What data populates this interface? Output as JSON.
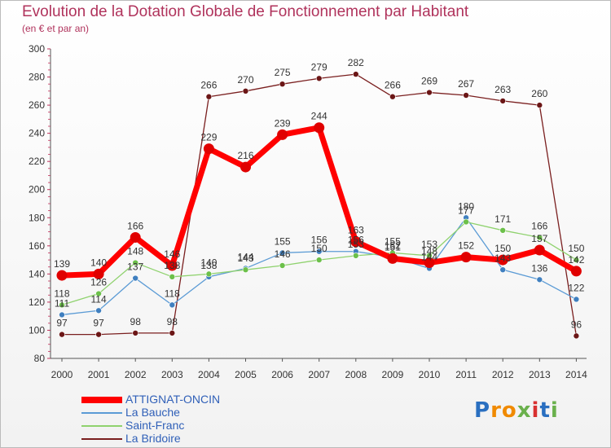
{
  "header": {
    "title": "Evolution de la Dotation Globale de Fonctionnement par Habitant",
    "subtitle": "(en € et par an)"
  },
  "logo": {
    "text": "Proxiti"
  },
  "colors": {
    "title": "#b0335c",
    "axis_text": "#333333",
    "legend_text": "#3060b8"
  },
  "chart_data": {
    "type": "line",
    "x": [
      "2000",
      "2001",
      "2002",
      "2003",
      "2004",
      "2005",
      "2006",
      "2007",
      "2008",
      "2009",
      "2010",
      "2011",
      "2012",
      "2013",
      "2014"
    ],
    "ylim": [
      80,
      300
    ],
    "yticks": [
      80,
      100,
      120,
      140,
      160,
      180,
      200,
      220,
      240,
      260,
      280,
      300
    ],
    "grid": false,
    "legend_position": "bottom-left",
    "series": [
      {
        "name": "La Bridoire",
        "color": "#7a1f1f",
        "marker": "#6b1616",
        "values": [
          97,
          97,
          98,
          98,
          266,
          270,
          275,
          279,
          282,
          266,
          269,
          267,
          263,
          260,
          96
        ]
      },
      {
        "name": "La Bauche",
        "color": "#5b9bd5",
        "marker": "#3f7fbf",
        "values": [
          111,
          114,
          137,
          118,
          138,
          144,
          155,
          156,
          156,
          152,
          144,
          180,
          143,
          136,
          122
        ]
      },
      {
        "name": "Saint-Franc",
        "color": "#8fd26e",
        "marker": "#6cc04a",
        "values": [
          118,
          126,
          148,
          138,
          140,
          143,
          146,
          150,
          153,
          155,
          153,
          177,
          171,
          166,
          150
        ]
      },
      {
        "name": "ATTIGNAT-ONCIN",
        "color": "#ff0000",
        "marker": "#e00000",
        "values": [
          139,
          140,
          166,
          146,
          229,
          216,
          239,
          244,
          163,
          151,
          148,
          152,
          150,
          157,
          142
        ]
      }
    ],
    "legend": [
      "ATTIGNAT-ONCIN",
      "La Bauche",
      "Saint-Franc",
      "La Bridoire"
    ]
  }
}
